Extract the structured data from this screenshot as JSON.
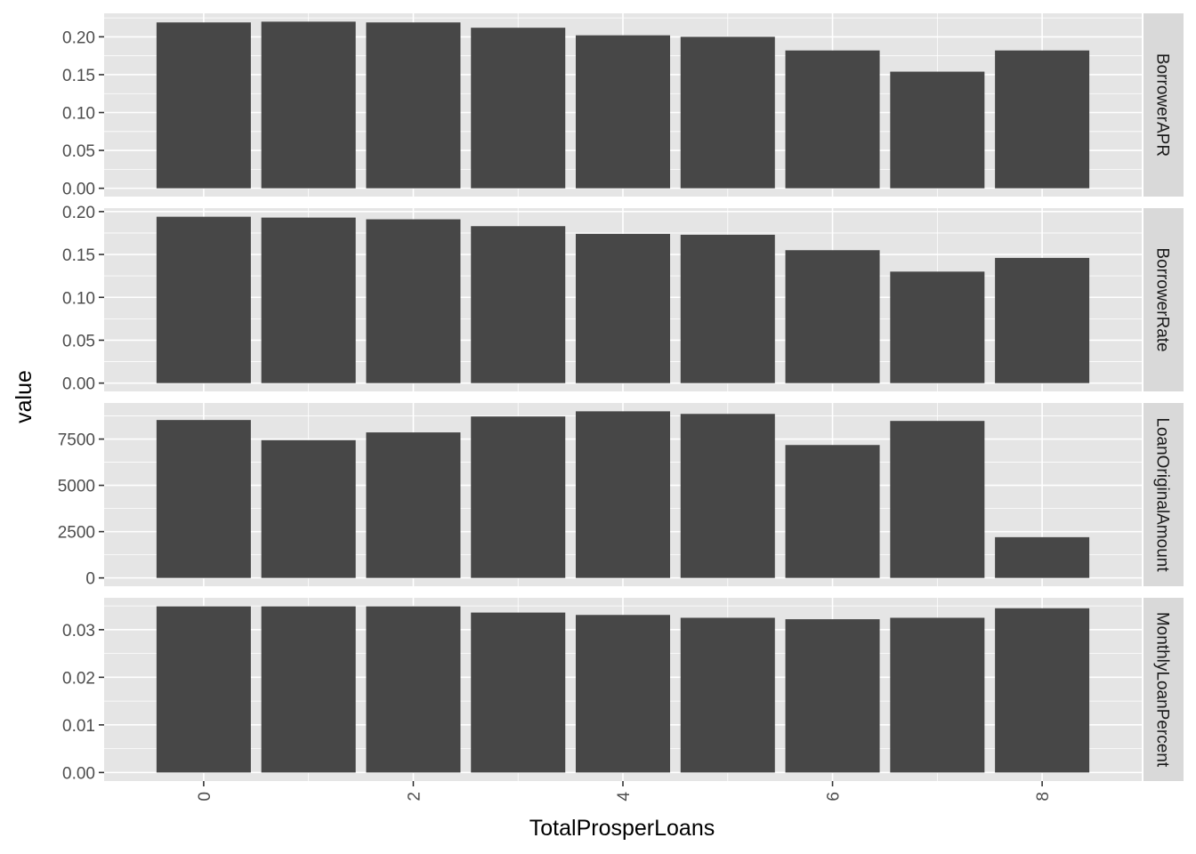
{
  "chart_data": {
    "type": "bar",
    "facet": "vertical, free y scales, strip labels on right",
    "xlabel": "TotalProsperLoans",
    "ylabel": "value",
    "x": [
      0,
      1,
      2,
      3,
      4,
      5,
      6,
      7,
      8
    ],
    "x_ticks": [
      "0",
      "2",
      "4",
      "6",
      "8"
    ],
    "xlim": [
      -0.95,
      8.95
    ],
    "grid": true,
    "colors": {
      "panel_bg": "#e5e5e5",
      "grid": "#ffffff",
      "bar": "#474747",
      "strip_bg": "#d9d9d9"
    },
    "panels": [
      {
        "strip": "BorrowerAPR",
        "values": [
          0.219,
          0.22,
          0.219,
          0.212,
          0.202,
          0.2,
          0.182,
          0.154,
          0.182
        ],
        "ylim": [
          -0.011,
          0.231
        ],
        "y_ticks": [
          0.0,
          0.05,
          0.1,
          0.15,
          0.2
        ],
        "y_tick_labels": [
          "0.00",
          "0.05",
          "0.10",
          "0.15",
          "0.20"
        ]
      },
      {
        "strip": "BorrowerRate",
        "values": [
          0.194,
          0.193,
          0.191,
          0.183,
          0.174,
          0.173,
          0.155,
          0.13,
          0.146
        ],
        "ylim": [
          -0.0097,
          0.204
        ],
        "y_ticks": [
          0.0,
          0.05,
          0.1,
          0.15,
          0.2
        ],
        "y_tick_labels": [
          "0.00",
          "0.05",
          "0.10",
          "0.15",
          "0.20"
        ]
      },
      {
        "strip": "LoanOriginalAmount",
        "values": [
          8530,
          7440,
          7860,
          8720,
          9000,
          8860,
          7180,
          8480,
          2200
        ],
        "ylim": [
          -450,
          9450
        ],
        "y_ticks": [
          0,
          2500,
          5000,
          7500
        ],
        "y_tick_labels": [
          "0",
          "2500",
          "5000",
          "7500"
        ]
      },
      {
        "strip": "MonthlyLoanPercent",
        "values": [
          0.0349,
          0.0349,
          0.0349,
          0.0336,
          0.0331,
          0.0325,
          0.0322,
          0.0325,
          0.0345
        ],
        "ylim": [
          -0.0018,
          0.0367
        ],
        "y_ticks": [
          0.0,
          0.01,
          0.02,
          0.03
        ],
        "y_tick_labels": [
          "0.00",
          "0.01",
          "0.02",
          "0.03"
        ]
      }
    ]
  }
}
